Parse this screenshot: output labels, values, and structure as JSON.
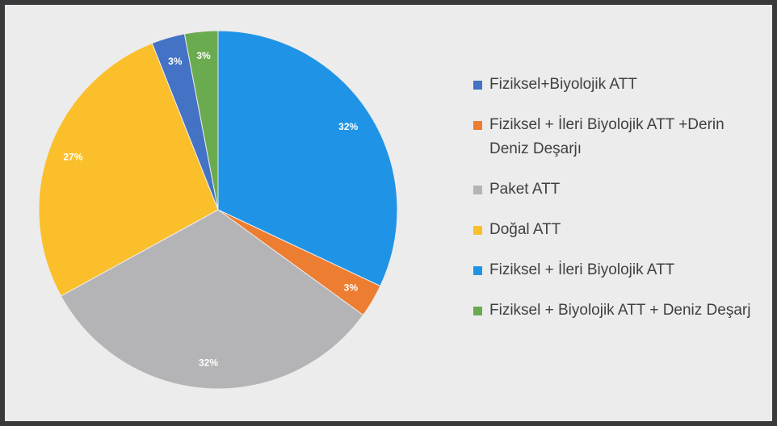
{
  "chart_data": {
    "type": "pie",
    "categories": [
      "Fiziksel+Biyolojik ATT",
      "Fiziksel + İleri Biyolojik ATT +Derin Deniz Deşarjı",
      "Paket ATT",
      "Doğal ATT",
      "Fiziksel + İleri Biyolojik ATT",
      "Fiziksel + Biyolojik ATT + Deniz Deşarj"
    ],
    "values": [
      3,
      3,
      32,
      27,
      32,
      3
    ],
    "value_labels": [
      "3%",
      "3%",
      "32%",
      "27%",
      "32%",
      "3%"
    ],
    "colors": [
      "#4472c4",
      "#ed7d31",
      "#b4b4b6",
      "#fbbf2c",
      "#1f94e6",
      "#6aab4f"
    ],
    "legend": "right"
  }
}
